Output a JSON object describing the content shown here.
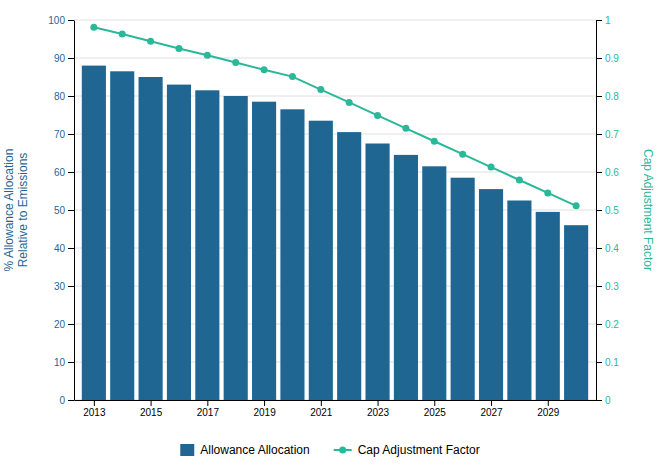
{
  "chart_data": {
    "type": "bar",
    "x": [
      2013,
      2014,
      2015,
      2016,
      2017,
      2018,
      2019,
      2020,
      2021,
      2022,
      2023,
      2024,
      2025,
      2026,
      2027,
      2028,
      2029,
      2030
    ],
    "xlim": [
      2012.3,
      2030.7
    ],
    "xticks": [
      2013,
      2015,
      2017,
      2019,
      2021,
      2023,
      2025,
      2027,
      2029
    ],
    "ylabel": "% Allowance Allocation\nRelative to Emissions",
    "y2label": "Cap Adjustment Factor",
    "ylim": [
      0,
      100
    ],
    "yticks": [
      0,
      10,
      20,
      30,
      40,
      50,
      60,
      70,
      80,
      90,
      100
    ],
    "y2lim": [
      0,
      1
    ],
    "y2ticks": [
      0,
      0.1,
      0.2,
      0.3,
      0.4,
      0.5,
      0.6,
      0.7,
      0.8,
      0.9,
      1
    ],
    "grid": true,
    "legend": "bottom",
    "series": [
      {
        "name": "Allowance Allocation",
        "type": "bar",
        "color": "#1f6692",
        "values": [
          88.0,
          86.5,
          85.0,
          83.0,
          81.5,
          80.0,
          78.5,
          76.5,
          73.5,
          70.5,
          67.5,
          64.5,
          61.5,
          58.5,
          55.5,
          52.5,
          49.5,
          46.0
        ]
      },
      {
        "name": "Cap Adjustment Factor",
        "type": "line",
        "axis": "y2",
        "color": "#2ab899",
        "marker": "circle",
        "values": [
          0.981,
          0.963,
          0.944,
          0.925,
          0.907,
          0.888,
          0.869,
          0.851,
          0.817,
          0.783,
          0.749,
          0.715,
          0.681,
          0.647,
          0.613,
          0.579,
          0.545,
          0.511
        ]
      }
    ]
  }
}
